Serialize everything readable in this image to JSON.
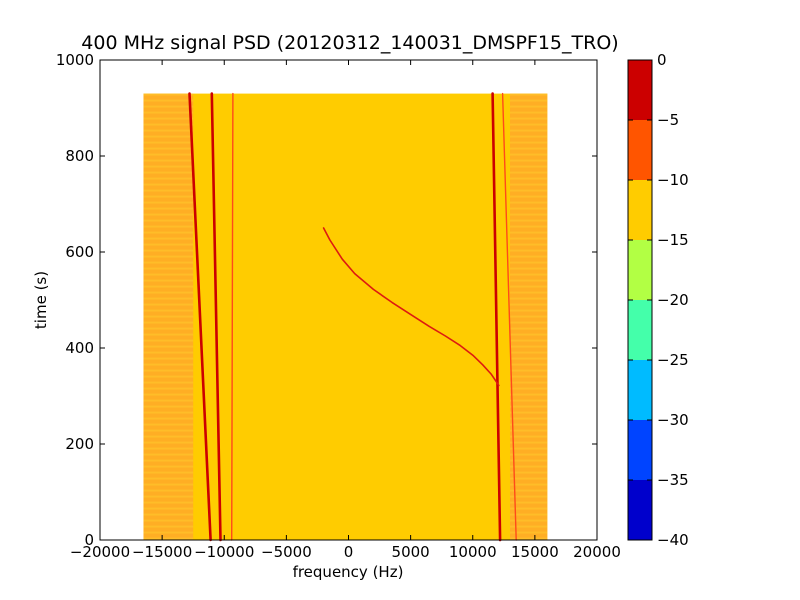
{
  "chart_data": {
    "type": "heatmap",
    "title": "400 MHz signal PSD (20120312_140031_DMSPF15_TRO)",
    "xlabel": "frequency (Hz)",
    "ylabel": "time (s)",
    "xlim": [
      -20000,
      20000
    ],
    "ylim": [
      0,
      1000
    ],
    "xticks": [
      -20000,
      -15000,
      -10000,
      -5000,
      0,
      5000,
      10000,
      15000,
      20000
    ],
    "yticks": [
      0,
      200,
      400,
      600,
      800,
      1000
    ],
    "data_extent": {
      "x": [
        -16500,
        16000
      ],
      "y": [
        0,
        930
      ]
    },
    "background_level_band": [
      -15,
      -10
    ],
    "features": [
      {
        "name": "left-stationary-carrier-a",
        "kind": "line",
        "color": "#cc0000",
        "points": [
          [
            -12800,
            930
          ],
          [
            -11100,
            0
          ]
        ]
      },
      {
        "name": "left-stationary-carrier-b",
        "kind": "line",
        "color": "#cc0000",
        "points": [
          [
            -11000,
            930
          ],
          [
            -10300,
            0
          ]
        ]
      },
      {
        "name": "left-faint-line",
        "kind": "line",
        "color": "#ff4a1a",
        "points": [
          [
            -9300,
            930
          ],
          [
            -9400,
            0
          ]
        ]
      },
      {
        "name": "right-stationary-carrier-a",
        "kind": "line",
        "color": "#cc0000",
        "points": [
          [
            11600,
            930
          ],
          [
            12200,
            0
          ]
        ]
      },
      {
        "name": "right-faint-line",
        "kind": "line",
        "color": "#ff4a1a",
        "points": [
          [
            12400,
            930
          ],
          [
            13500,
            0
          ]
        ]
      },
      {
        "name": "satellite-doppler-curve",
        "kind": "curve",
        "color": "#dd1a10",
        "points": [
          [
            -2000,
            650
          ],
          [
            -1500,
            625
          ],
          [
            -500,
            585
          ],
          [
            500,
            555
          ],
          [
            2000,
            522
          ],
          [
            3500,
            495
          ],
          [
            5000,
            470
          ],
          [
            6500,
            445
          ],
          [
            7800,
            425
          ],
          [
            9000,
            405
          ],
          [
            10000,
            385
          ],
          [
            10800,
            365
          ],
          [
            11500,
            345
          ],
          [
            12100,
            322
          ]
        ]
      }
    ],
    "colorbar": {
      "range": [
        -40,
        0
      ],
      "ticks": [
        0,
        -5,
        -10,
        -15,
        -20,
        -25,
        -30,
        -35,
        -40
      ],
      "bands": [
        {
          "from": -40,
          "to": -35,
          "color": "#0000cc"
        },
        {
          "from": -35,
          "to": -30,
          "color": "#0044ff"
        },
        {
          "from": -30,
          "to": -25,
          "color": "#00bbff"
        },
        {
          "from": -25,
          "to": -20,
          "color": "#44ffaa"
        },
        {
          "from": -20,
          "to": -15,
          "color": "#b2ff44"
        },
        {
          "from": -15,
          "to": -10,
          "color": "#ffcc00"
        },
        {
          "from": -10,
          "to": -5,
          "color": "#ff5500"
        },
        {
          "from": -5,
          "to": 0,
          "color": "#cc0000"
        }
      ]
    },
    "colors": {
      "background_fill": "#ffcc00",
      "edge_noise": "#ffa82a",
      "edge_noise_light": "#ffd930"
    }
  }
}
